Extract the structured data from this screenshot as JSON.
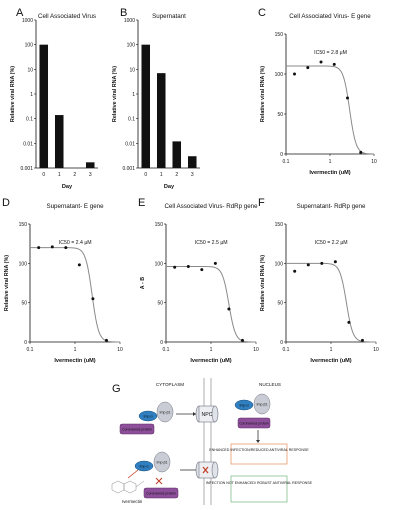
{
  "panels": [
    {
      "letter": "A",
      "title": "Cell Associated Virus",
      "ylabel": "Relative viral RNA (%)",
      "xlabel": "Day"
    },
    {
      "letter": "B",
      "title": "Supernatant",
      "ylabel": "Relative viral RNA (%)",
      "xlabel": "Day"
    },
    {
      "letter": "C",
      "title": "Cell Associated Virus- E gene",
      "ylabel": "Relative viral RNA (%)",
      "xlabel": "Ivermectin (uM)",
      "ic50": "IC50 = 2.8 μM"
    },
    {
      "letter": "D",
      "title": "Supernatant- E gene",
      "ylabel": "Relative viral RNA (%)",
      "xlabel": "Ivermectin (uM)",
      "ic50": "IC50 = 2.4 μM"
    },
    {
      "letter": "E",
      "title": "Cell Associated Virus- RdRp gene",
      "ylabel": "A - B",
      "xlabel": "Ivermectin (uM)",
      "ic50": "IC50 = 2.5 μM"
    },
    {
      "letter": "F",
      "title": "Supernatant- RdRp gene",
      "ylabel": "Relative viral RNA (%)",
      "xlabel": "Ivermectin (uM)",
      "ic50": "IC50 = 2.2 μM"
    }
  ],
  "diagram": {
    "letter": "G",
    "cytoplasm": "CYTOPLASM",
    "nucleus": "NUCLEUS",
    "npc": "NPC",
    "imp_a": "Imp α",
    "imp_b": "Imp β1",
    "protein": "Coronavirus protein",
    "ivermectin": "Ivermectin",
    "outcome1": "ENHANCED INFECTION/REDUCED ANTIVIRAL RESPONSE",
    "outcome2": "INFECTION NOT ENHANCED/ ROBUST ANTIVIRAL RESPONSE"
  },
  "colors": {
    "bar": "#111111",
    "curve": "#8a8a8a",
    "imp_a": "#2f7fc1",
    "imp_b": "#c9ccd4",
    "protein": "#8e4f9a",
    "red": "#c23b22"
  },
  "chart_data": [
    {
      "panel": "A",
      "type": "bar",
      "categories": [
        "0",
        "1",
        "2",
        "3"
      ],
      "values": [
        100,
        0.14,
        0.001,
        0.0017
      ],
      "yscale": "log",
      "ylim": [
        0.001,
        1000
      ],
      "yticks": [
        "0.001",
        "0.01",
        "0.1",
        "1",
        "10",
        "100",
        "1000"
      ]
    },
    {
      "panel": "B",
      "type": "bar",
      "categories": [
        "0",
        "1",
        "2",
        "3"
      ],
      "values": [
        100,
        7,
        0.012,
        0.003
      ],
      "yscale": "log",
      "ylim": [
        0.001,
        1000
      ],
      "yticks": [
        "0.001",
        "0.01",
        "0.1",
        "1",
        "10",
        "100",
        "1000"
      ]
    },
    {
      "panel": "C",
      "type": "scatter",
      "xscale": "log",
      "xlim": [
        0.1,
        10
      ],
      "ylim": [
        0,
        150
      ],
      "xticks": [
        "0.1",
        "1",
        "10"
      ],
      "yticks": [
        "0",
        "50",
        "100",
        "150"
      ],
      "x": [
        0.156,
        0.313,
        0.625,
        1.25,
        2.5,
        5
      ],
      "y": [
        100,
        108,
        115,
        112,
        70,
        2
      ],
      "ic50": 2.8,
      "top": 110
    },
    {
      "panel": "D",
      "type": "scatter",
      "xscale": "log",
      "xlim": [
        0.1,
        10
      ],
      "ylim": [
        0,
        150
      ],
      "xticks": [
        "0.1",
        "1",
        "10"
      ],
      "yticks": [
        "0",
        "50",
        "100",
        "150"
      ],
      "x": [
        0.156,
        0.313,
        0.625,
        1.25,
        2.5,
        5
      ],
      "y": [
        120,
        121,
        120,
        98,
        55,
        2
      ],
      "ic50": 2.4,
      "top": 120
    },
    {
      "panel": "E",
      "type": "scatter",
      "xscale": "log",
      "xlim": [
        0.1,
        10
      ],
      "ylim": [
        0,
        150
      ],
      "xticks": [
        "0.1",
        "1",
        "10"
      ],
      "yticks": [
        "0",
        "50",
        "100",
        "150"
      ],
      "x": [
        0.156,
        0.313,
        0.625,
        1.25,
        2.5,
        5
      ],
      "y": [
        95,
        96,
        92,
        100,
        42,
        2
      ],
      "ic50": 2.5,
      "top": 96
    },
    {
      "panel": "F",
      "type": "scatter",
      "xscale": "log",
      "xlim": [
        0.1,
        10
      ],
      "ylim": [
        0,
        150
      ],
      "xticks": [
        "0.1",
        "1",
        "10"
      ],
      "yticks": [
        "0",
        "50",
        "100",
        "150"
      ],
      "x": [
        0.156,
        0.313,
        0.625,
        1.25,
        2.5,
        5
      ],
      "y": [
        90,
        98,
        100,
        102,
        25,
        2
      ],
      "ic50": 2.2,
      "top": 100
    }
  ]
}
